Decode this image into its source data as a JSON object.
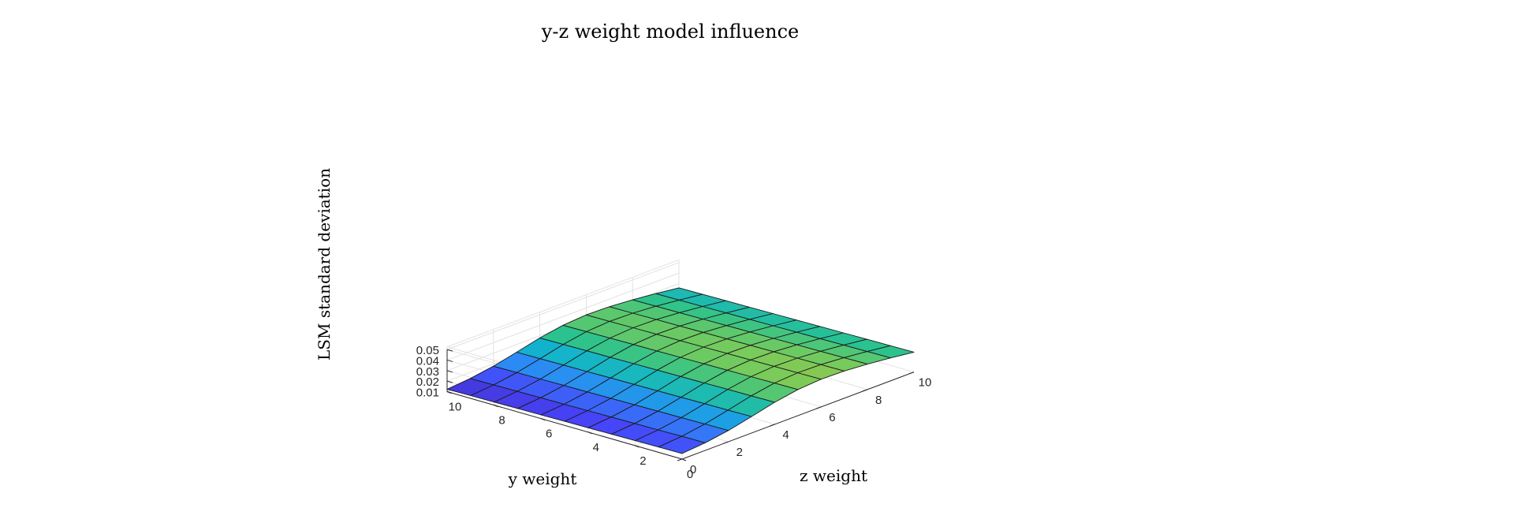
{
  "chart_data": {
    "type": "surface",
    "title": "y-z weight model influence",
    "xlabel": "y weight",
    "ylabel": "z weight",
    "zlabel": "LSM standard deviation",
    "xlim": [
      0,
      10
    ],
    "ylim": [
      0,
      10
    ],
    "zlim": [
      0.01,
      0.05
    ],
    "x_ticks": [
      "0",
      "2",
      "4",
      "6",
      "8",
      "10"
    ],
    "y_ticks": [
      "0",
      "2",
      "4",
      "6",
      "8",
      "10"
    ],
    "z_ticks": [
      "0.01",
      "0.02",
      "0.03",
      "0.04",
      "0.05"
    ],
    "x": [
      0,
      1,
      2,
      3,
      4,
      5,
      6,
      7,
      8,
      9,
      10
    ],
    "y": [
      0,
      1,
      2,
      3,
      4,
      5,
      6,
      7,
      8,
      9,
      10
    ],
    "z_formula_note": "",
    "grid": true,
    "colormap": [
      "#3e26a8",
      "#4743f8",
      "#2e87f7",
      "#10b1d5",
      "#2ac28e",
      "#79cb5b",
      "#bebd35",
      "#f9bd3b",
      "#f9fb15"
    ]
  }
}
